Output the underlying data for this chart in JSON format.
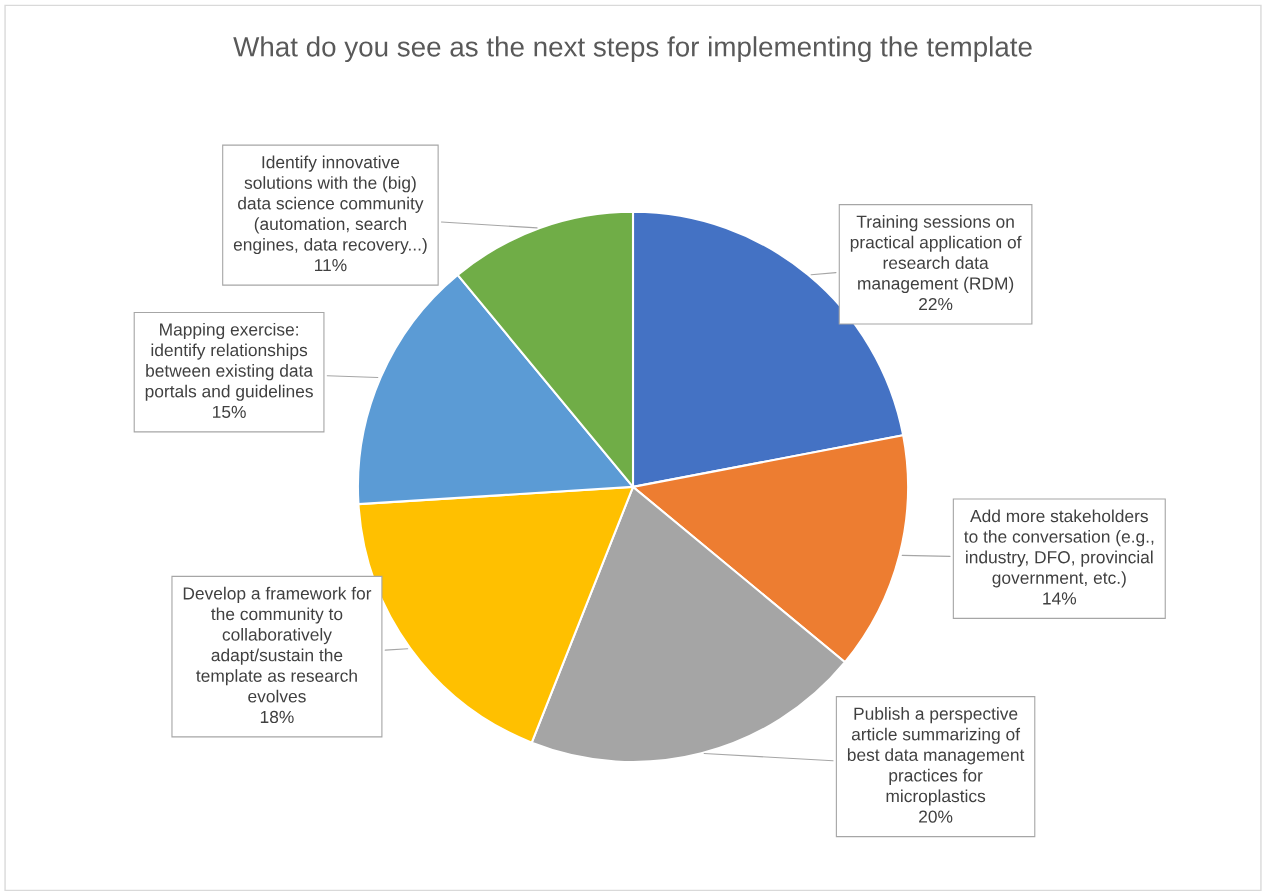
{
  "chart_data": {
    "type": "pie",
    "title": "What do you see as the next steps for implementing the template",
    "categories": [
      "Training sessions on\npractical application of\nresearch data\nmanagement (RDM)",
      "Add more stakeholders\nto the conversation (e.g.,\nindustry, DFO, provincial\ngovernment, etc.)",
      "Publish a perspective\narticle summarizing of\nbest data management\npractices for\nmicroplastics",
      "Develop a framework for\nthe community to\ncollaboratively\nadapt/sustain the\ntemplate as research\nevolves",
      "Mapping exercise:\nidentify relationships\nbetween existing data\nportals and guidelines",
      "Identify innovative\nsolutions with the (big)\ndata science community\n(automation, search\nengines, data recovery...)"
    ],
    "values": [
      22,
      14,
      20,
      18,
      15,
      11
    ],
    "colors": [
      "#4472c4",
      "#ed7d31",
      "#a5a5a5",
      "#ffc000",
      "#5b9bd5",
      "#70ad47"
    ],
    "value_labels": [
      "22%",
      "14%",
      "20%",
      "18%",
      "15%",
      "11%"
    ],
    "legend": false
  }
}
